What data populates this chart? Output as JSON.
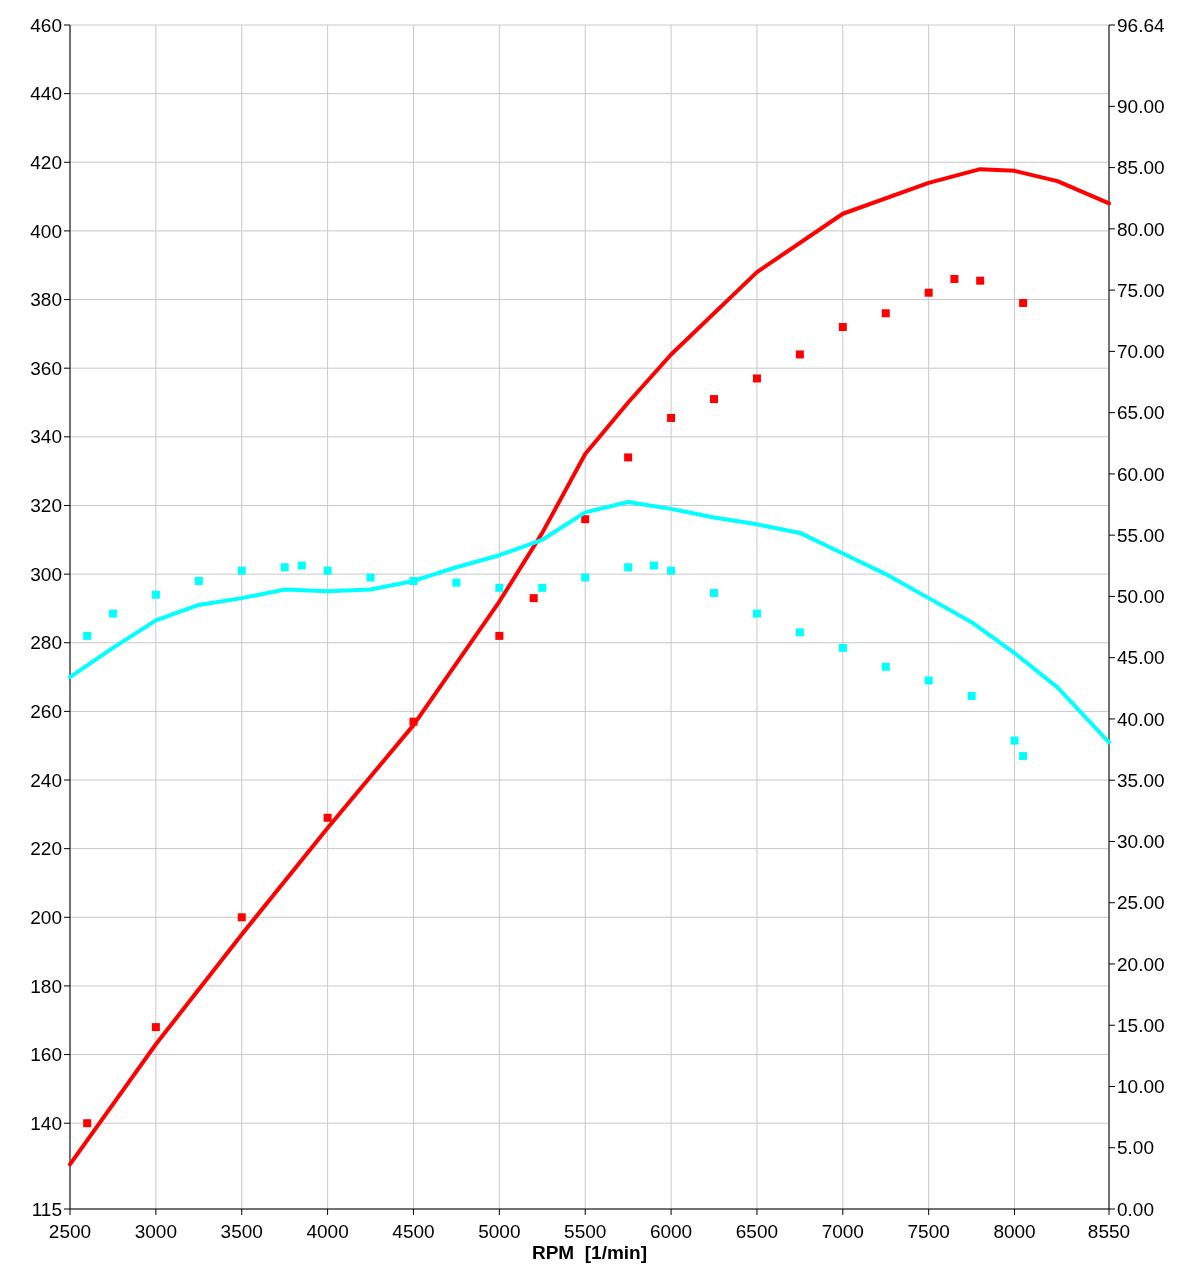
{
  "chart_data": {
    "type": "line",
    "xlabel": "RPM  [1/min]",
    "xlim": [
      2500,
      8550
    ],
    "xticks": [
      2500,
      3000,
      3500,
      4000,
      4500,
      5000,
      5500,
      6000,
      6500,
      7000,
      7500,
      8000,
      8550
    ],
    "ylim": [
      115,
      460
    ],
    "yticks": [
      115,
      140,
      160,
      180,
      200,
      220,
      240,
      260,
      280,
      300,
      320,
      340,
      360,
      380,
      400,
      420,
      440,
      460
    ],
    "y2lim": [
      0,
      96.64
    ],
    "y2ticks": [
      {
        "value": 0,
        "label": "0.00"
      },
      {
        "value": 5,
        "label": "5.00"
      },
      {
        "value": 10,
        "label": "10.00"
      },
      {
        "value": 15,
        "label": "15.00"
      },
      {
        "value": 20,
        "label": "20.00"
      },
      {
        "value": 25,
        "label": "25.00"
      },
      {
        "value": 30,
        "label": "30.00"
      },
      {
        "value": 35,
        "label": "35.00"
      },
      {
        "value": 40,
        "label": "40.00"
      },
      {
        "value": 45,
        "label": "45.00"
      },
      {
        "value": 50,
        "label": "50.00"
      },
      {
        "value": 55,
        "label": "55.00"
      },
      {
        "value": 60,
        "label": "60.00"
      },
      {
        "value": 65,
        "label": "65.00"
      },
      {
        "value": 70,
        "label": "70.00"
      },
      {
        "value": 75,
        "label": "75.00"
      },
      {
        "value": 80,
        "label": "80.00"
      },
      {
        "value": 85,
        "label": "85.00"
      },
      {
        "value": 90,
        "label": "90.00"
      },
      {
        "value": 96.64,
        "label": "96.64"
      }
    ],
    "grid": true,
    "series": [
      {
        "color": "#ff0000",
        "marker": "none",
        "x": [
          2500,
          3000,
          3500,
          4000,
          4500,
          5000,
          5250,
          5500,
          5750,
          6000,
          6500,
          7000,
          7500,
          7800,
          8000,
          8250,
          8550
        ],
        "values": [
          128,
          163,
          195,
          226,
          256,
          292,
          312,
          335,
          350,
          364,
          388,
          405,
          414,
          418,
          417.5,
          414.5,
          408
        ]
      },
      {
        "color": "#ff0000",
        "type": "scatter",
        "marker": "square",
        "x": [
          2600,
          3000,
          3500,
          4000,
          4500,
          5000,
          5200,
          5500,
          5750,
          6000,
          6250,
          6500,
          6750,
          7000,
          7250,
          7500,
          7650,
          7800,
          8050
        ],
        "values": [
          140,
          168,
          200,
          229,
          257,
          282,
          293,
          316,
          334,
          345.5,
          351,
          357,
          364,
          372,
          376,
          382,
          386,
          385.5,
          379
        ]
      },
      {
        "color": "#00ffff",
        "marker": "none",
        "x": [
          2500,
          2750,
          3000,
          3250,
          3500,
          3750,
          4000,
          4250,
          4500,
          4750,
          5000,
          5250,
          5500,
          5750,
          6000,
          6250,
          6500,
          6750,
          7000,
          7250,
          7500,
          7750,
          8000,
          8250,
          8550
        ],
        "values": [
          270,
          278.5,
          286.5,
          291,
          293,
          295.5,
          295,
          295.5,
          298,
          302,
          305.5,
          310,
          318,
          321,
          319,
          316.5,
          314.5,
          312,
          306,
          300,
          293,
          286,
          277,
          267,
          251
        ]
      },
      {
        "color": "#00ffff",
        "type": "scatter",
        "marker": "square",
        "x": [
          2600,
          2750,
          3000,
          3250,
          3500,
          3750,
          3850,
          4000,
          4250,
          4500,
          4750,
          5000,
          5250,
          5500,
          5750,
          5900,
          6000,
          6250,
          6500,
          6750,
          7000,
          7250,
          7500,
          7750,
          8000,
          8050
        ],
        "values": [
          282,
          288.5,
          294,
          298,
          301,
          302,
          302.5,
          301,
          299,
          298,
          297.5,
          296,
          296,
          299,
          302,
          302.5,
          301,
          294.5,
          288.5,
          283,
          278.5,
          273,
          269,
          264.5,
          251.5,
          247
        ]
      }
    ]
  }
}
